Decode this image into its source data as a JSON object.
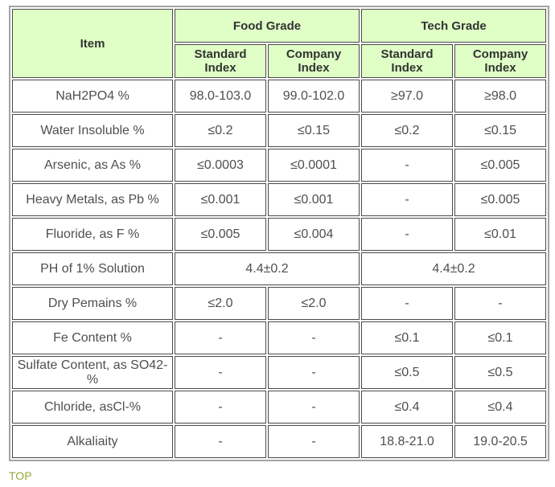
{
  "table": {
    "item_header": "Item",
    "groups": [
      {
        "label": "Food Grade",
        "subheaders": [
          "Standard Index",
          "Company Index"
        ]
      },
      {
        "label": "Tech Grade",
        "subheaders": [
          "Standard Index",
          "Company Index"
        ]
      }
    ],
    "rows": [
      {
        "item": "NaH2PO4 %",
        "values": [
          "98.0-103.0",
          "99.0-102.0",
          "≥97.0",
          "≥98.0"
        ]
      },
      {
        "item": "Water Insoluble %",
        "values": [
          "≤0.2",
          "≤0.15",
          "≤0.2",
          "≤0.15"
        ]
      },
      {
        "item": "Arsenic, as As %",
        "values": [
          "≤0.0003",
          "≤0.0001",
          "-",
          "≤0.005"
        ]
      },
      {
        "item": "Heavy Metals, as Pb %",
        "values": [
          "≤0.001",
          "≤0.001",
          "-",
          "≤0.005"
        ]
      },
      {
        "item": "Fluoride, as F %",
        "values": [
          "≤0.005",
          "≤0.004",
          "-",
          "≤0.01"
        ]
      },
      {
        "item": "PH of 1% Solution",
        "values": [
          "4.4±0.2",
          "4.4±0.2"
        ],
        "colspan": 2
      },
      {
        "item": "Dry Pemains %",
        "values": [
          "≤2.0",
          "≤2.0",
          "-",
          "-"
        ]
      },
      {
        "item": "Fe Content %",
        "values": [
          "-",
          "-",
          "≤0.1",
          "≤0.1"
        ]
      },
      {
        "item": "Sulfate Content, as  SO42-%",
        "values": [
          "-",
          "-",
          "≤0.5",
          "≤0.5"
        ]
      },
      {
        "item": "Chloride, asCl-%",
        "values": [
          "-",
          "-",
          "≤0.4",
          "≤0.4"
        ]
      },
      {
        "item": "Alkaliaity",
        "values": [
          "-",
          "-",
          "18.8-21.0",
          "19.0-20.5"
        ]
      }
    ],
    "colors": {
      "header_bg": "#dfffc6",
      "header_text": "#333333",
      "cell_text": "#4f4f4f",
      "border_dark": "#4a4a4a",
      "border_outer": "#a3a3a3",
      "top_link": "#94a838"
    }
  },
  "footer": {
    "top_link_label": "TOP"
  }
}
